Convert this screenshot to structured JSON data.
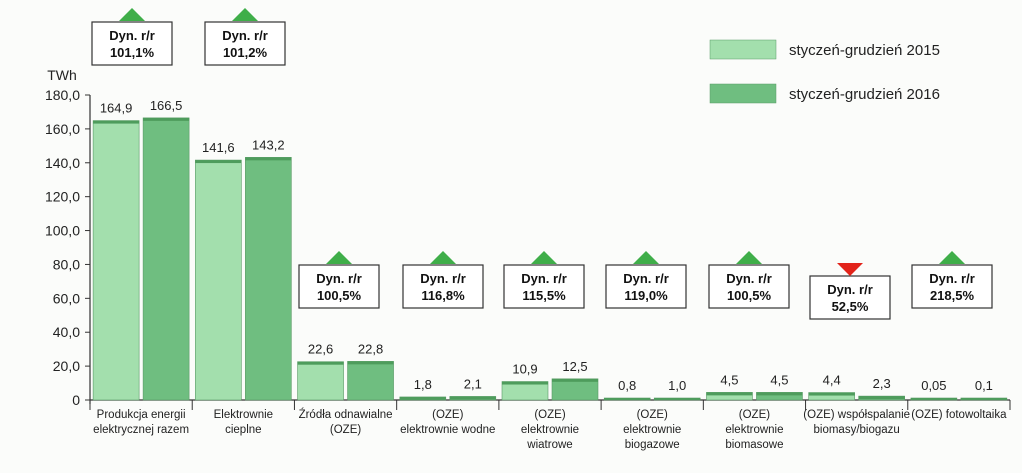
{
  "chart_data": {
    "type": "bar",
    "ylabel": "TWh",
    "ylim": [
      0,
      180
    ],
    "yticks": [
      "0",
      "20,0",
      "40,0",
      "60,0",
      "80,0",
      "100,0",
      "120,0",
      "140,0",
      "160,0",
      "180,0"
    ],
    "grid": false,
    "legend_position": "top-right",
    "categories": [
      [
        "Produkcja energii",
        "elektrycznej razem"
      ],
      [
        "Elektrownie",
        "cieplne"
      ],
      [
        "Źródła odnawialne",
        "(OZE)"
      ],
      [
        "(OZE)",
        "elektrownie wodne"
      ],
      [
        "(OZE)",
        "elektrownie",
        "wiatrowe"
      ],
      [
        "(OZE)",
        "elektrownie",
        "biogazowe"
      ],
      [
        "(OZE)",
        "elektrownie",
        "biomasowe"
      ],
      [
        "(OZE) współspalanie",
        "biomasy/biogazu"
      ],
      [
        "(OZE) fotowoltaika"
      ]
    ],
    "series": [
      {
        "name": "styczeń-grudzień 2015",
        "color": "#a3dfad",
        "values": [
          164.9,
          141.6,
          22.6,
          1.8,
          10.9,
          0.8,
          4.5,
          4.4,
          0.05
        ],
        "labels": [
          "164,9",
          "141,6",
          "22,6",
          "1,8",
          "10,9",
          "0,8",
          "4,5",
          "4,4",
          "0,05"
        ]
      },
      {
        "name": "styczeń-grudzień 2016",
        "color": "#6fbe80",
        "values": [
          166.5,
          143.2,
          22.8,
          2.1,
          12.5,
          1.0,
          4.5,
          2.3,
          0.1
        ],
        "labels": [
          "166,5",
          "143,2",
          "22,8",
          "2,1",
          "12,5",
          "1,0",
          "4,5",
          "2,3",
          "0,1"
        ]
      }
    ],
    "annotations": [
      {
        "title": "Dyn. r/r",
        "value": "101,1%",
        "direction": "up"
      },
      {
        "title": "Dyn. r/r",
        "value": "101,2%",
        "direction": "up"
      },
      {
        "title": "Dyn. r/r",
        "value": "100,5%",
        "direction": "up"
      },
      {
        "title": "Dyn. r/r",
        "value": "116,8%",
        "direction": "up"
      },
      {
        "title": "Dyn. r/r",
        "value": "115,5%",
        "direction": "up"
      },
      {
        "title": "Dyn. r/r",
        "value": "119,0%",
        "direction": "up"
      },
      {
        "title": "Dyn. r/r",
        "value": "100,5%",
        "direction": "up"
      },
      {
        "title": "Dyn. r/r",
        "value": "52,5%",
        "direction": "down"
      },
      {
        "title": "Dyn. r/r",
        "value": "218,5%",
        "direction": "up"
      }
    ],
    "colors": {
      "up": "#3fae49",
      "down": "#e2231a",
      "axis": "#333333"
    }
  }
}
